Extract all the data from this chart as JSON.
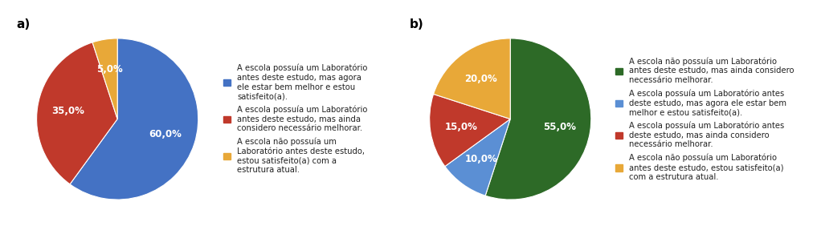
{
  "chart_a": {
    "label": "a)",
    "values": [
      60.0,
      35.0,
      5.0
    ],
    "colors": [
      "#4472C4",
      "#C0392B",
      "#E8A838"
    ],
    "pct_labels": [
      "60,0%",
      "35,0%",
      "5,0%"
    ],
    "startangle": 90,
    "counterclock": false,
    "legend_entries": [
      "A escola possuía um Laboratório\nantes deste estudo, mas agora\nele estar bem melhor e estou\nsatisfeito(a).",
      "A escola possuía um Laboratório\nantes deste estudo, mas ainda\nconsidero necessário melhorar.",
      "A escola não possuía um\nLaboratório antes deste estudo,\nestou satisfeito(a) com a\nestrutura atual."
    ],
    "legend_colors": [
      "#4472C4",
      "#C0392B",
      "#E8A838"
    ]
  },
  "chart_b": {
    "label": "b)",
    "values": [
      55.0,
      10.0,
      15.0,
      20.0
    ],
    "colors": [
      "#2D6A27",
      "#5B8FD4",
      "#C0392B",
      "#E8A838"
    ],
    "pct_labels": [
      "55,0%",
      "10,0%",
      "15,0%",
      "20,0%"
    ],
    "startangle": 90,
    "counterclock": false,
    "legend_entries": [
      "A escola não possuía um Laboratório\nantes deste estudo, mas ainda considero\nnecessário melhorar.",
      "A escola possuía um Laboratório antes\ndeste estudo, mas agora ele estar bem\nmelhor e estou satisfeito(a).",
      "A escola possuía um Laboratório antes\ndeste estudo, mas ainda considero\nnecessário melhorar.",
      "A escola não possuía um Laboratório\nantes deste estudo, estou satisfeito(a)\ncom a estrutura atual."
    ],
    "legend_colors": [
      "#2D6A27",
      "#5B8FD4",
      "#C0392B",
      "#E8A838"
    ]
  },
  "background_color": "#FFFFFF",
  "pct_fontsize": 8.5,
  "legend_fontsize": 7.2,
  "section_label_fontsize": 11,
  "pct_color": "white"
}
